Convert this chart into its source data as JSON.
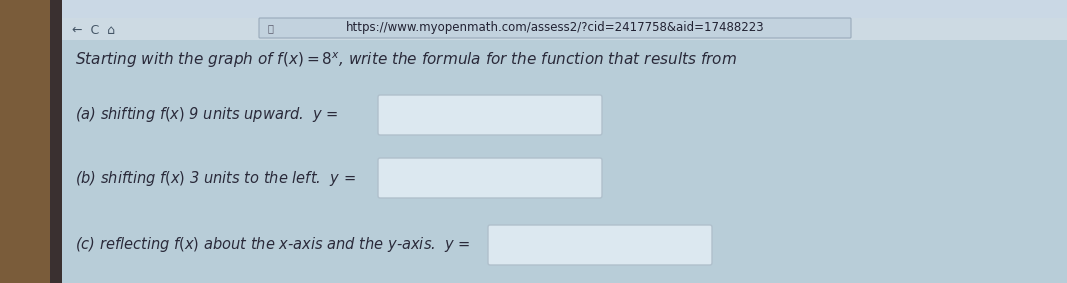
{
  "bg_color": "#b8cdd8",
  "browser_bar_color": "#cddae3",
  "url_bar_color": "#c2d2de",
  "url_text": "https://www.myopenmath.com/assess2/?cid=2417758&aid=17488223",
  "left_strip_color": "#7a5c3a",
  "dark_strip_color": "#3a3030",
  "text_color": "#2a2a3a",
  "input_box_color": "#dce8f0",
  "input_box_edge": "#b0c0cc",
  "font_size_main": 11,
  "font_size_url": 8.5,
  "font_size_items": 10.5,
  "font_size_browser": 9
}
